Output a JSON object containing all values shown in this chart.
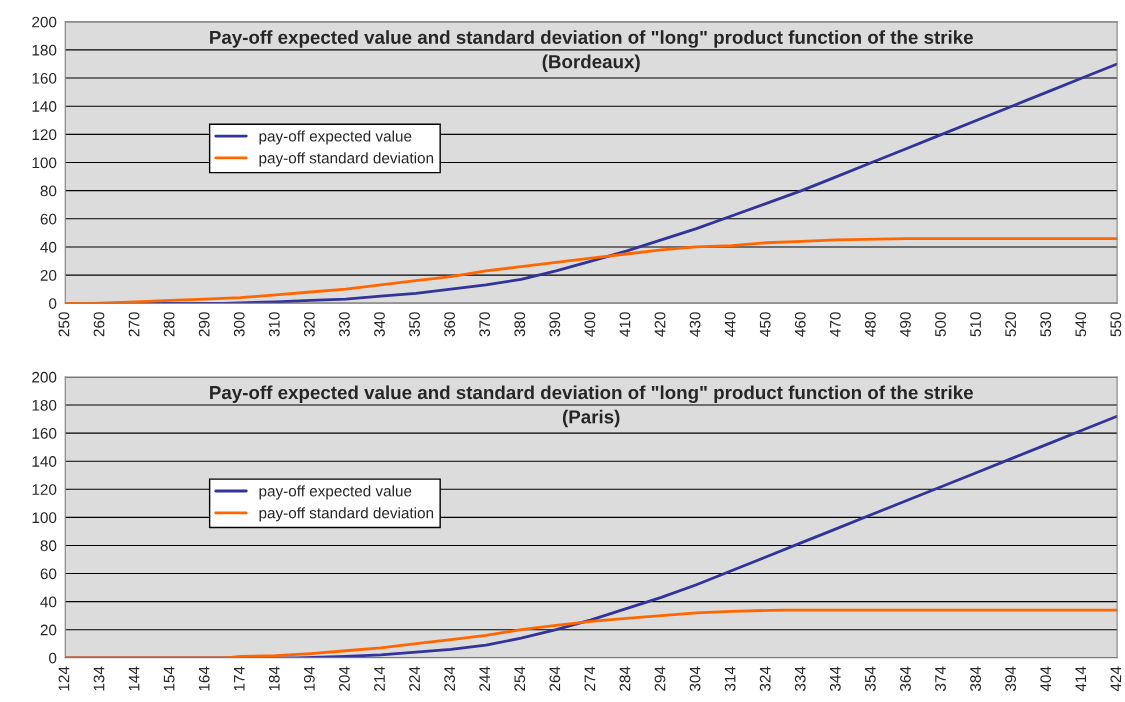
{
  "chart_data": [
    {
      "type": "line",
      "title": "Pay-off expected value and standard deviation of \"long\" product function of the strike\n(Bordeaux)",
      "xlim": [
        250,
        550
      ],
      "xticks": [
        250,
        260,
        270,
        280,
        290,
        300,
        310,
        320,
        330,
        340,
        350,
        360,
        370,
        380,
        390,
        400,
        410,
        420,
        430,
        440,
        450,
        460,
        470,
        480,
        490,
        500,
        510,
        520,
        530,
        540,
        550
      ],
      "ylim": [
        0,
        200
      ],
      "yticks": [
        0,
        20,
        40,
        60,
        80,
        100,
        120,
        140,
        160,
        180,
        200
      ],
      "grid": "y",
      "legend": "left",
      "series": [
        {
          "name": "pay-off expected value",
          "color": "#333399",
          "x": [
            250,
            295,
            310,
            320,
            330,
            340,
            350,
            360,
            370,
            380,
            390,
            400,
            410,
            420,
            430,
            440,
            450,
            460,
            470,
            480,
            490,
            500,
            510,
            520,
            530,
            540,
            550
          ],
          "values": [
            0,
            0,
            1,
            2,
            3,
            5,
            7,
            10,
            13,
            17,
            23,
            30,
            37,
            45,
            53,
            62,
            71,
            80,
            90,
            100,
            110,
            120,
            130,
            140,
            150,
            160,
            170
          ]
        },
        {
          "name": "pay-off standard deviation",
          "color": "#ff6600",
          "x": [
            250,
            258,
            270,
            280,
            290,
            300,
            310,
            320,
            330,
            340,
            350,
            360,
            370,
            380,
            390,
            400,
            410,
            420,
            430,
            440,
            450,
            460,
            470,
            490,
            550
          ],
          "values": [
            0,
            0,
            1,
            2,
            3,
            4,
            6,
            8,
            10,
            13,
            16,
            19,
            23,
            26,
            29,
            32,
            35,
            38,
            40,
            41,
            43,
            44,
            45,
            46,
            46
          ]
        }
      ]
    },
    {
      "type": "line",
      "title": "Pay-off expected value and standard deviation of \"long\" product function of the strike\n(Paris)",
      "xlim": [
        124,
        424
      ],
      "xticks": [
        124,
        134,
        144,
        154,
        164,
        174,
        184,
        194,
        204,
        214,
        224,
        234,
        244,
        254,
        264,
        274,
        284,
        294,
        304,
        314,
        324,
        334,
        344,
        354,
        364,
        374,
        384,
        394,
        404,
        414,
        424
      ],
      "ylim": [
        0,
        200
      ],
      "yticks": [
        0,
        20,
        40,
        60,
        80,
        100,
        120,
        140,
        160,
        180,
        200
      ],
      "grid": "y",
      "legend": "left",
      "series": [
        {
          "name": "pay-off expected value",
          "color": "#333399",
          "x": [
            124,
            190,
            204,
            214,
            224,
            234,
            244,
            254,
            264,
            274,
            284,
            294,
            304,
            314,
            324,
            334,
            344,
            354,
            364,
            374,
            384,
            394,
            404,
            414,
            424
          ],
          "values": [
            0,
            0,
            1,
            2,
            4,
            6,
            9,
            14,
            20,
            27,
            35,
            43,
            52,
            62,
            72,
            82,
            92,
            102,
            112,
            122,
            132,
            142,
            152,
            162,
            172
          ]
        },
        {
          "name": "pay-off standard deviation",
          "color": "#ff6600",
          "x": [
            124,
            170,
            174,
            184,
            194,
            204,
            214,
            224,
            234,
            244,
            254,
            264,
            274,
            284,
            294,
            304,
            314,
            328,
            424
          ],
          "values": [
            0,
            0,
            1,
            1.5,
            3,
            5,
            7,
            10,
            13,
            16,
            20,
            23,
            26,
            28,
            30,
            32,
            33,
            34,
            34
          ]
        }
      ]
    }
  ]
}
